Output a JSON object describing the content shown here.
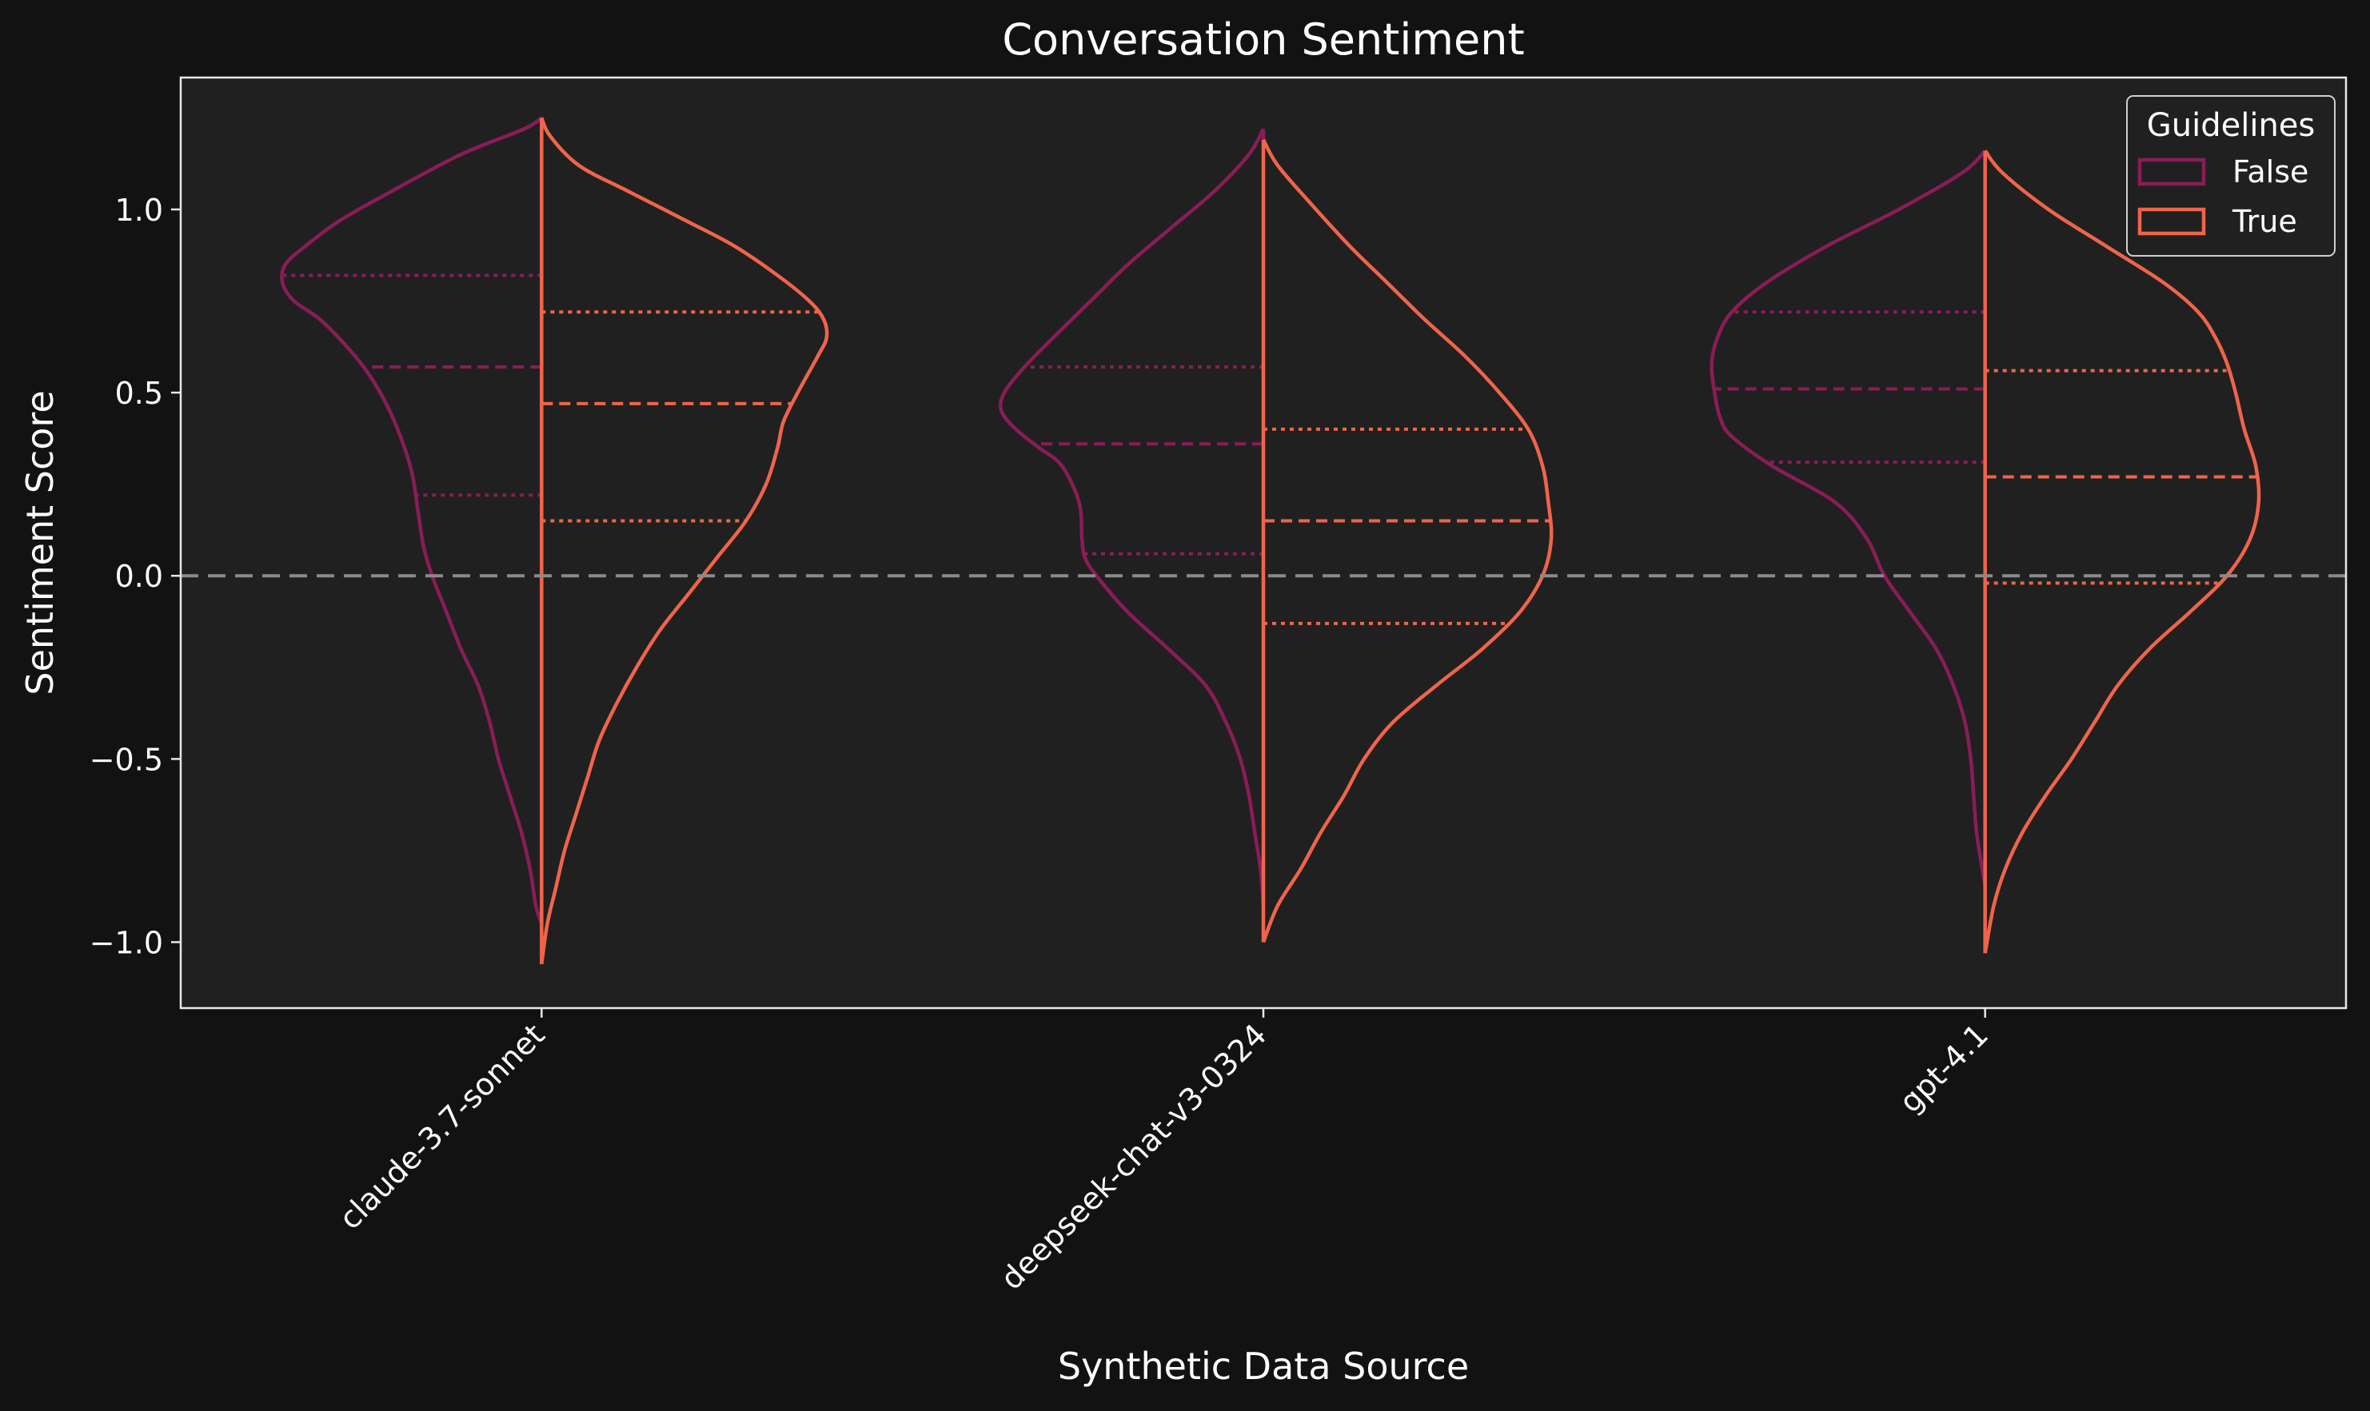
{
  "chart_data": {
    "type": "violin",
    "title": "Conversation Sentiment",
    "xlabel": "Synthetic Data Source",
    "ylabel": "Sentiment Score",
    "ylim": [
      -1.18,
      1.36
    ],
    "yticks": [
      1.0,
      0.5,
      0.0,
      -0.5,
      -1.0
    ],
    "ytick_labels": [
      "1.0",
      "0.5",
      "0.0",
      "−0.5",
      "−1.0"
    ],
    "reference_line": 0.0,
    "split": true,
    "grid": false,
    "legend": {
      "title": "Guidelines",
      "position": "top-right"
    },
    "categories": [
      "claude-3.7-sonnet",
      "deepseek-chat-v3-0324",
      "gpt-4.1"
    ],
    "series": [
      {
        "name": "False",
        "color": "#8a1c58",
        "violins": [
          {
            "category": "claude-3.7-sonnet",
            "quartiles": [
              0.22,
              0.57,
              0.82
            ],
            "profile": [
              [
                1.25,
                0
              ],
              [
                1.22,
                0.06
              ],
              [
                1.15,
                0.28
              ],
              [
                1.05,
                0.52
              ],
              [
                0.97,
                0.7
              ],
              [
                0.9,
                0.82
              ],
              [
                0.85,
                0.89
              ],
              [
                0.8,
                0.9
              ],
              [
                0.75,
                0.86
              ],
              [
                0.7,
                0.77
              ],
              [
                0.62,
                0.67
              ],
              [
                0.55,
                0.6
              ],
              [
                0.47,
                0.54
              ],
              [
                0.38,
                0.49
              ],
              [
                0.28,
                0.45
              ],
              [
                0.18,
                0.43
              ],
              [
                0.08,
                0.41
              ],
              [
                0.0,
                0.38
              ],
              [
                -0.1,
                0.33
              ],
              [
                -0.2,
                0.28
              ],
              [
                -0.3,
                0.22
              ],
              [
                -0.4,
                0.18
              ],
              [
                -0.5,
                0.15
              ],
              [
                -0.6,
                0.11
              ],
              [
                -0.7,
                0.07
              ],
              [
                -0.8,
                0.04
              ],
              [
                -0.9,
                0.02
              ],
              [
                -0.95,
                0
              ]
            ]
          },
          {
            "category": "deepseek-chat-v3-0324",
            "quartiles": [
              0.06,
              0.36,
              0.57
            ],
            "profile": [
              [
                1.22,
                0
              ],
              [
                1.15,
                0.05
              ],
              [
                1.05,
                0.17
              ],
              [
                0.95,
                0.32
              ],
              [
                0.85,
                0.47
              ],
              [
                0.75,
                0.6
              ],
              [
                0.65,
                0.73
              ],
              [
                0.57,
                0.83
              ],
              [
                0.5,
                0.9
              ],
              [
                0.45,
                0.91
              ],
              [
                0.4,
                0.86
              ],
              [
                0.35,
                0.78
              ],
              [
                0.3,
                0.7
              ],
              [
                0.2,
                0.64
              ],
              [
                0.1,
                0.63
              ],
              [
                0.05,
                0.62
              ],
              [
                0.0,
                0.58
              ],
              [
                -0.1,
                0.47
              ],
              [
                -0.2,
                0.33
              ],
              [
                -0.3,
                0.2
              ],
              [
                -0.4,
                0.13
              ],
              [
                -0.5,
                0.08
              ],
              [
                -0.6,
                0.05
              ],
              [
                -0.7,
                0.03
              ],
              [
                -0.8,
                0.01
              ],
              [
                -0.9,
                0
              ]
            ]
          },
          {
            "category": "gpt-4.1",
            "quartiles": [
              0.31,
              0.51,
              0.72
            ],
            "profile": [
              [
                1.16,
                0
              ],
              [
                1.1,
                0.08
              ],
              [
                1.0,
                0.3
              ],
              [
                0.9,
                0.55
              ],
              [
                0.8,
                0.76
              ],
              [
                0.72,
                0.88
              ],
              [
                0.65,
                0.93
              ],
              [
                0.58,
                0.95
              ],
              [
                0.5,
                0.94
              ],
              [
                0.43,
                0.92
              ],
              [
                0.38,
                0.88
              ],
              [
                0.3,
                0.74
              ],
              [
                0.2,
                0.52
              ],
              [
                0.1,
                0.41
              ],
              [
                0.0,
                0.35
              ],
              [
                -0.1,
                0.26
              ],
              [
                -0.2,
                0.17
              ],
              [
                -0.3,
                0.11
              ],
              [
                -0.4,
                0.07
              ],
              [
                -0.5,
                0.05
              ],
              [
                -0.6,
                0.04
              ],
              [
                -0.7,
                0.03
              ],
              [
                -0.8,
                0.01
              ],
              [
                -0.85,
                0
              ]
            ]
          }
        ]
      },
      {
        "name": "True",
        "color": "#f0644a",
        "violins": [
          {
            "category": "claude-3.7-sonnet",
            "quartiles": [
              0.15,
              0.47,
              0.72
            ],
            "profile": [
              [
                1.25,
                0
              ],
              [
                1.2,
                0.03
              ],
              [
                1.12,
                0.13
              ],
              [
                1.05,
                0.3
              ],
              [
                0.97,
                0.5
              ],
              [
                0.9,
                0.67
              ],
              [
                0.82,
                0.82
              ],
              [
                0.75,
                0.93
              ],
              [
                0.7,
                0.98
              ],
              [
                0.65,
                0.99
              ],
              [
                0.6,
                0.96
              ],
              [
                0.5,
                0.89
              ],
              [
                0.42,
                0.84
              ],
              [
                0.35,
                0.82
              ],
              [
                0.25,
                0.78
              ],
              [
                0.15,
                0.71
              ],
              [
                0.05,
                0.61
              ],
              [
                -0.05,
                0.51
              ],
              [
                -0.15,
                0.41
              ],
              [
                -0.25,
                0.33
              ],
              [
                -0.35,
                0.26
              ],
              [
                -0.45,
                0.2
              ],
              [
                -0.55,
                0.16
              ],
              [
                -0.65,
                0.12
              ],
              [
                -0.75,
                0.08
              ],
              [
                -0.85,
                0.05
              ],
              [
                -0.95,
                0.02
              ],
              [
                -1.06,
                0
              ]
            ]
          },
          {
            "category": "deepseek-chat-v3-0324",
            "quartiles": [
              -0.13,
              0.15,
              0.4
            ],
            "profile": [
              [
                1.19,
                0
              ],
              [
                1.12,
                0.05
              ],
              [
                1.02,
                0.16
              ],
              [
                0.9,
                0.3
              ],
              [
                0.8,
                0.43
              ],
              [
                0.7,
                0.56
              ],
              [
                0.6,
                0.7
              ],
              [
                0.5,
                0.82
              ],
              [
                0.4,
                0.92
              ],
              [
                0.3,
                0.97
              ],
              [
                0.2,
                0.99
              ],
              [
                0.1,
                1.0
              ],
              [
                0.0,
                0.97
              ],
              [
                -0.1,
                0.89
              ],
              [
                -0.2,
                0.76
              ],
              [
                -0.3,
                0.6
              ],
              [
                -0.4,
                0.45
              ],
              [
                -0.5,
                0.35
              ],
              [
                -0.6,
                0.28
              ],
              [
                -0.7,
                0.2
              ],
              [
                -0.8,
                0.13
              ],
              [
                -0.9,
                0.05
              ],
              [
                -1.0,
                0
              ]
            ]
          },
          {
            "category": "gpt-4.1",
            "quartiles": [
              -0.02,
              0.27,
              0.56
            ],
            "profile": [
              [
                1.16,
                0
              ],
              [
                1.1,
                0.06
              ],
              [
                1.0,
                0.22
              ],
              [
                0.9,
                0.42
              ],
              [
                0.8,
                0.62
              ],
              [
                0.72,
                0.74
              ],
              [
                0.65,
                0.8
              ],
              [
                0.58,
                0.84
              ],
              [
                0.5,
                0.87
              ],
              [
                0.4,
                0.9
              ],
              [
                0.3,
                0.94
              ],
              [
                0.2,
                0.95
              ],
              [
                0.1,
                0.92
              ],
              [
                0.0,
                0.84
              ],
              [
                -0.1,
                0.71
              ],
              [
                -0.2,
                0.57
              ],
              [
                -0.3,
                0.46
              ],
              [
                -0.4,
                0.38
              ],
              [
                -0.5,
                0.3
              ],
              [
                -0.6,
                0.21
              ],
              [
                -0.7,
                0.13
              ],
              [
                -0.8,
                0.07
              ],
              [
                -0.9,
                0.03
              ],
              [
                -1.03,
                0
              ]
            ]
          }
        ]
      }
    ]
  }
}
